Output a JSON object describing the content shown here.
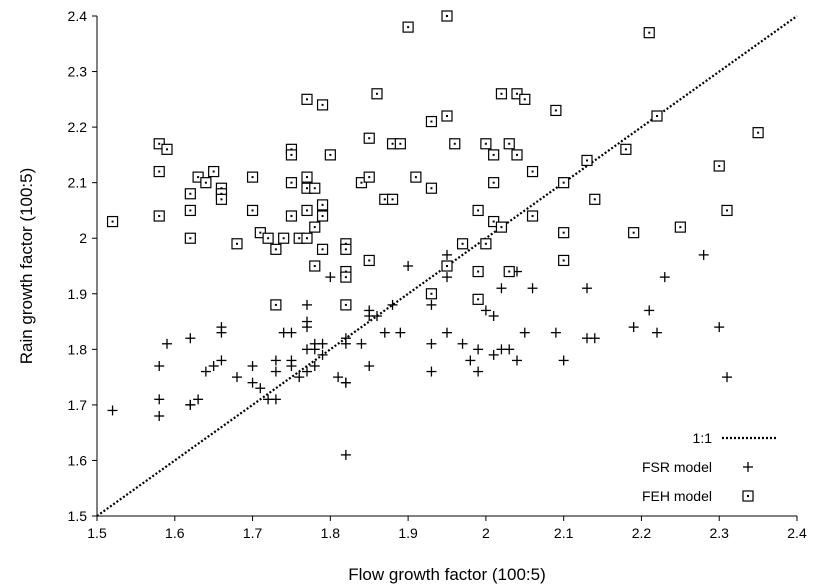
{
  "chart_data": {
    "type": "scatter",
    "xlabel": "Flow growth factor (100:5)",
    "ylabel": "Rain growth factor (100:5)",
    "xlim": [
      1.5,
      2.4
    ],
    "ylim": [
      1.5,
      2.4
    ],
    "xticks": [
      "1.5",
      "1.6",
      "1.7",
      "1.8",
      "1.9",
      "2",
      "2.1",
      "2.2",
      "2.3",
      "2.4"
    ],
    "yticks": [
      "1.5",
      "1.6",
      "1.7",
      "1.8",
      "1.9",
      "2",
      "2.1",
      "2.2",
      "2.3",
      "2.4"
    ],
    "grid": false,
    "legend_position": "bottom-right",
    "series": [
      {
        "name": "1:1",
        "marker": "dotted-line",
        "points": [
          [
            1.5,
            1.5
          ],
          [
            2.4,
            2.4
          ]
        ]
      },
      {
        "name": "FSR model",
        "marker": "plus",
        "points": [
          [
            1.52,
            1.69
          ],
          [
            1.58,
            1.77
          ],
          [
            1.58,
            1.71
          ],
          [
            1.58,
            1.68
          ],
          [
            1.59,
            1.81
          ],
          [
            1.62,
            1.82
          ],
          [
            1.62,
            1.7
          ],
          [
            1.62,
            1.7
          ],
          [
            1.63,
            1.71
          ],
          [
            1.64,
            1.76
          ],
          [
            1.65,
            1.77
          ],
          [
            1.66,
            1.84
          ],
          [
            1.66,
            1.83
          ],
          [
            1.66,
            1.78
          ],
          [
            1.68,
            1.75
          ],
          [
            1.7,
            1.77
          ],
          [
            1.7,
            1.74
          ],
          [
            1.71,
            1.73
          ],
          [
            1.72,
            1.71
          ],
          [
            1.73,
            1.71
          ],
          [
            1.73,
            1.76
          ],
          [
            1.73,
            1.78
          ],
          [
            1.74,
            1.83
          ],
          [
            1.75,
            1.83
          ],
          [
            1.75,
            1.78
          ],
          [
            1.75,
            1.77
          ],
          [
            1.76,
            1.75
          ],
          [
            1.77,
            1.88
          ],
          [
            1.77,
            1.85
          ],
          [
            1.77,
            1.84
          ],
          [
            1.77,
            1.8
          ],
          [
            1.77,
            1.76
          ],
          [
            1.78,
            1.81
          ],
          [
            1.78,
            1.8
          ],
          [
            1.78,
            1.77
          ],
          [
            1.79,
            1.81
          ],
          [
            1.79,
            1.79
          ],
          [
            1.8,
            1.93
          ],
          [
            1.81,
            1.75
          ],
          [
            1.82,
            1.82
          ],
          [
            1.82,
            1.81
          ],
          [
            1.82,
            1.74
          ],
          [
            1.82,
            1.74
          ],
          [
            1.82,
            1.61
          ],
          [
            1.84,
            1.81
          ],
          [
            1.85,
            1.87
          ],
          [
            1.85,
            1.86
          ],
          [
            1.85,
            1.77
          ],
          [
            1.86,
            1.86
          ],
          [
            1.87,
            1.83
          ],
          [
            1.88,
            1.88
          ],
          [
            1.89,
            1.83
          ],
          [
            1.9,
            1.95
          ],
          [
            1.93,
            1.88
          ],
          [
            1.93,
            1.81
          ],
          [
            1.93,
            1.76
          ],
          [
            1.95,
            1.97
          ],
          [
            1.95,
            1.93
          ],
          [
            1.95,
            1.83
          ],
          [
            1.97,
            1.81
          ],
          [
            1.98,
            1.78
          ],
          [
            1.99,
            1.76
          ],
          [
            1.99,
            1.8
          ],
          [
            2.0,
            1.87
          ],
          [
            2.01,
            1.86
          ],
          [
            2.01,
            1.79
          ],
          [
            2.02,
            1.91
          ],
          [
            2.02,
            1.8
          ],
          [
            2.03,
            1.8
          ],
          [
            2.04,
            1.94
          ],
          [
            2.04,
            1.78
          ],
          [
            2.05,
            1.83
          ],
          [
            2.06,
            1.91
          ],
          [
            2.09,
            1.83
          ],
          [
            2.1,
            1.78
          ],
          [
            2.13,
            1.91
          ],
          [
            2.13,
            1.82
          ],
          [
            2.14,
            1.82
          ],
          [
            2.19,
            1.84
          ],
          [
            2.21,
            1.87
          ],
          [
            2.22,
            1.83
          ],
          [
            2.23,
            1.93
          ],
          [
            2.28,
            1.97
          ],
          [
            2.3,
            1.84
          ],
          [
            2.31,
            1.75
          ]
        ]
      },
      {
        "name": "FEH model",
        "marker": "square",
        "points": [
          [
            1.52,
            2.03
          ],
          [
            1.58,
            2.17
          ],
          [
            1.58,
            2.12
          ],
          [
            1.58,
            2.04
          ],
          [
            1.59,
            2.16
          ],
          [
            1.62,
            2.08
          ],
          [
            1.62,
            2.05
          ],
          [
            1.62,
            2.0
          ],
          [
            1.63,
            2.11
          ],
          [
            1.64,
            2.1
          ],
          [
            1.65,
            2.12
          ],
          [
            1.66,
            2.09
          ],
          [
            1.66,
            2.08
          ],
          [
            1.66,
            2.07
          ],
          [
            1.68,
            1.99
          ],
          [
            1.7,
            2.11
          ],
          [
            1.7,
            2.05
          ],
          [
            1.71,
            2.01
          ],
          [
            1.72,
            2.0
          ],
          [
            1.73,
            1.98
          ],
          [
            1.73,
            1.88
          ],
          [
            1.74,
            2.0
          ],
          [
            1.75,
            2.16
          ],
          [
            1.75,
            2.15
          ],
          [
            1.75,
            2.1
          ],
          [
            1.75,
            2.04
          ],
          [
            1.76,
            2.0
          ],
          [
            1.77,
            2.25
          ],
          [
            1.77,
            2.11
          ],
          [
            1.77,
            2.09
          ],
          [
            1.77,
            2.05
          ],
          [
            1.77,
            2.0
          ],
          [
            1.78,
            2.09
          ],
          [
            1.78,
            2.02
          ],
          [
            1.78,
            1.95
          ],
          [
            1.79,
            2.24
          ],
          [
            1.79,
            2.06
          ],
          [
            1.79,
            2.04
          ],
          [
            1.79,
            1.98
          ],
          [
            1.8,
            2.15
          ],
          [
            1.82,
            1.99
          ],
          [
            1.82,
            1.98
          ],
          [
            1.82,
            1.94
          ],
          [
            1.82,
            1.93
          ],
          [
            1.82,
            1.88
          ],
          [
            1.84,
            2.1
          ],
          [
            1.85,
            2.18
          ],
          [
            1.85,
            2.11
          ],
          [
            1.85,
            1.96
          ],
          [
            1.86,
            2.26
          ],
          [
            1.87,
            2.07
          ],
          [
            1.88,
            2.17
          ],
          [
            1.88,
            2.07
          ],
          [
            1.89,
            2.17
          ],
          [
            1.9,
            2.38
          ],
          [
            1.91,
            2.11
          ],
          [
            1.93,
            2.21
          ],
          [
            1.93,
            2.09
          ],
          [
            1.93,
            1.9
          ],
          [
            1.95,
            2.4
          ],
          [
            1.95,
            2.22
          ],
          [
            1.95,
            1.95
          ],
          [
            1.96,
            2.17
          ],
          [
            1.97,
            1.99
          ],
          [
            1.99,
            2.05
          ],
          [
            1.99,
            1.89
          ],
          [
            1.99,
            1.94
          ],
          [
            2.0,
            2.17
          ],
          [
            2.0,
            1.99
          ],
          [
            2.01,
            2.15
          ],
          [
            2.01,
            2.1
          ],
          [
            2.01,
            2.03
          ],
          [
            2.02,
            2.26
          ],
          [
            2.02,
            2.02
          ],
          [
            2.03,
            2.17
          ],
          [
            2.03,
            1.94
          ],
          [
            2.04,
            2.26
          ],
          [
            2.04,
            2.15
          ],
          [
            2.05,
            2.25
          ],
          [
            2.06,
            2.12
          ],
          [
            2.06,
            2.04
          ],
          [
            2.09,
            2.23
          ],
          [
            2.1,
            2.1
          ],
          [
            2.1,
            2.01
          ],
          [
            2.1,
            1.96
          ],
          [
            2.13,
            2.14
          ],
          [
            2.14,
            2.07
          ],
          [
            2.18,
            2.16
          ],
          [
            2.19,
            2.01
          ],
          [
            2.21,
            2.37
          ],
          [
            2.22,
            2.22
          ],
          [
            2.25,
            2.02
          ],
          [
            2.3,
            2.13
          ],
          [
            2.31,
            2.05
          ],
          [
            2.35,
            2.19
          ]
        ]
      }
    ]
  }
}
